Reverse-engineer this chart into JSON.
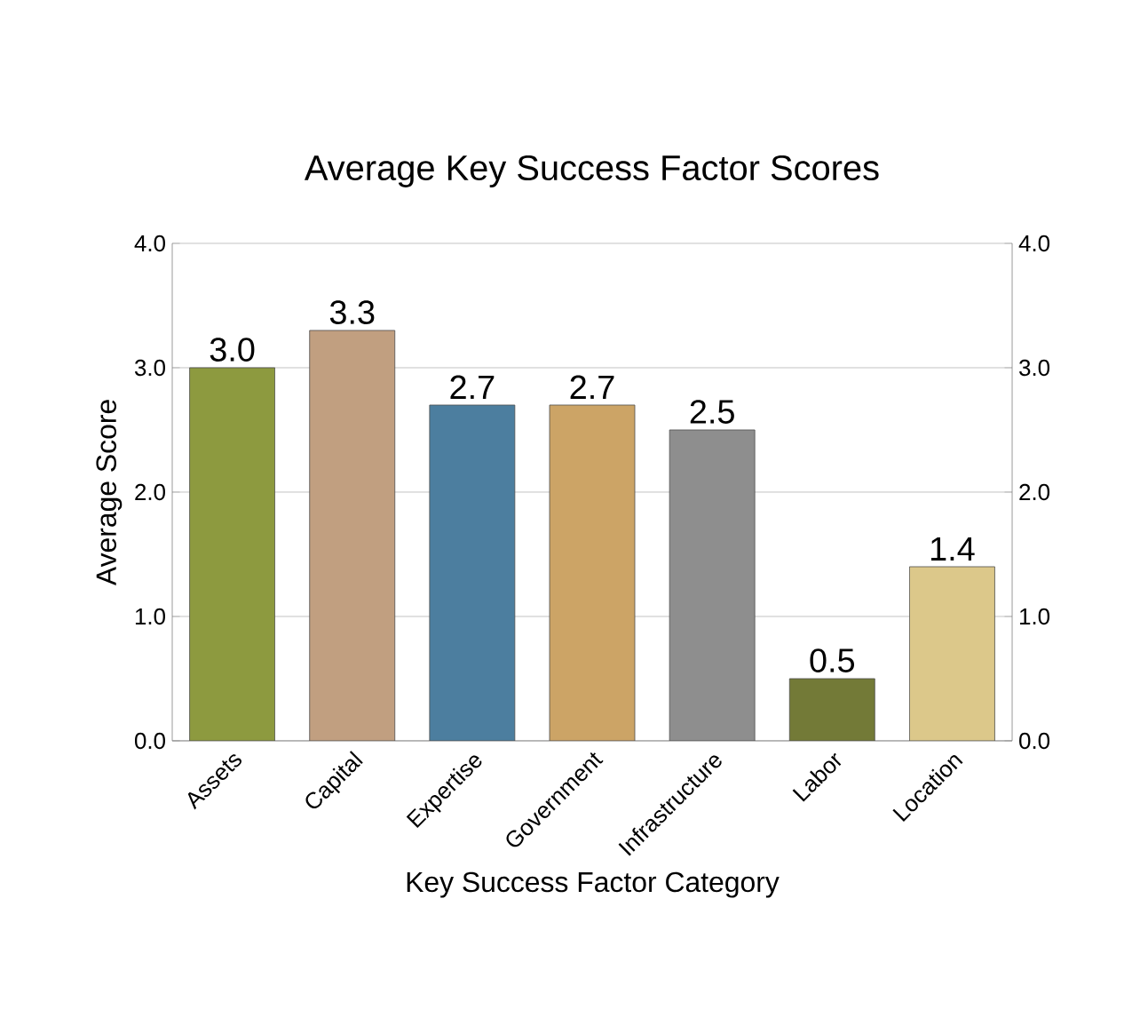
{
  "chart_data": {
    "type": "bar",
    "title": "Average Key Success Factor Scores",
    "xlabel": "Key Success Factor Category",
    "ylabel": "Average Score",
    "categories": [
      "Assets",
      "Capital",
      "Expertise",
      "Government",
      "Infrastructure",
      "Labor",
      "Location"
    ],
    "values": [
      3.0,
      3.3,
      2.7,
      2.7,
      2.5,
      0.5,
      1.4
    ],
    "colors": [
      "#8d9a3f",
      "#c19f80",
      "#4c7e9f",
      "#cca466",
      "#8e8e8e",
      "#737a37",
      "#dcc88a"
    ],
    "value_labels": [
      "3.0",
      "3.3",
      "2.7",
      "2.7",
      "2.5",
      "0.5",
      "1.4"
    ],
    "ylim": [
      0,
      4
    ],
    "yticks": [
      {
        "value": 0,
        "label": "0.0"
      },
      {
        "value": 1,
        "label": "1.0"
      },
      {
        "value": 2,
        "label": "2.0"
      },
      {
        "value": 3,
        "label": "3.0"
      },
      {
        "value": 4,
        "label": "4.0"
      }
    ],
    "y2lim": [
      0,
      4
    ],
    "y2ticks": [
      {
        "value": 0,
        "label": "0.0"
      },
      {
        "value": 1,
        "label": "1.0"
      },
      {
        "value": 2,
        "label": "2.0"
      },
      {
        "value": 3,
        "label": "3.0"
      },
      {
        "value": 4,
        "label": "4.0"
      }
    ],
    "grid": "y"
  }
}
